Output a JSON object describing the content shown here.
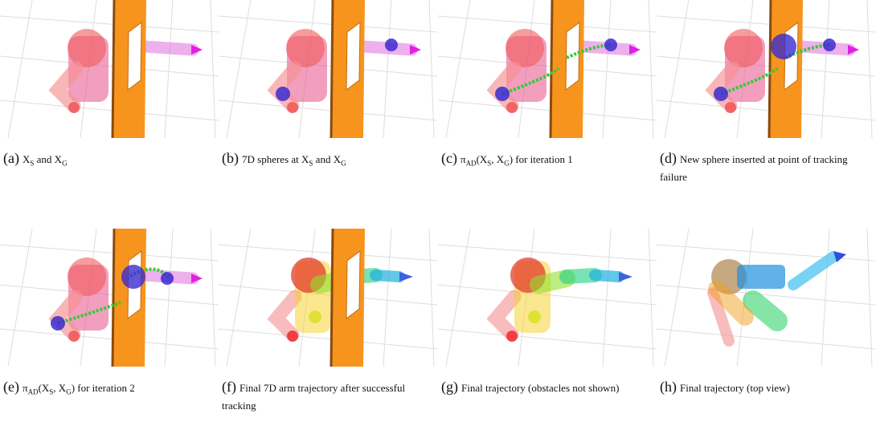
{
  "figures": [
    {
      "label": "(a)",
      "parts": [
        "X",
        {
          "sub": "S"
        },
        " and ",
        "X",
        {
          "sub": "G"
        }
      ]
    },
    {
      "label": "(b)",
      "parts": [
        "7D spheres at ",
        "X",
        {
          "sub": "S"
        },
        " and ",
        "X",
        {
          "sub": "G"
        }
      ]
    },
    {
      "label": "(c)",
      "parts": [
        "π",
        {
          "sub": "AD"
        },
        "(X",
        {
          "sub": "S"
        },
        ", X",
        {
          "sub": "G"
        },
        ") for iteration 1"
      ]
    },
    {
      "label": "(d)",
      "parts": [
        "New sphere inserted at point of tracking failure"
      ]
    },
    {
      "label": "(e)",
      "parts": [
        "π",
        {
          "sub": "AD"
        },
        "(X",
        {
          "sub": "S"
        },
        ", X",
        {
          "sub": "G"
        },
        ") for iteration 2"
      ]
    },
    {
      "label": "(f)",
      "parts": [
        "Final 7D arm trajectory after successful tracking"
      ]
    },
    {
      "label": "(g)",
      "parts": [
        "Final trajectory (obstacles not shown)"
      ]
    },
    {
      "label": "(h)",
      "parts": [
        "Final trajectory (top view)"
      ]
    }
  ]
}
